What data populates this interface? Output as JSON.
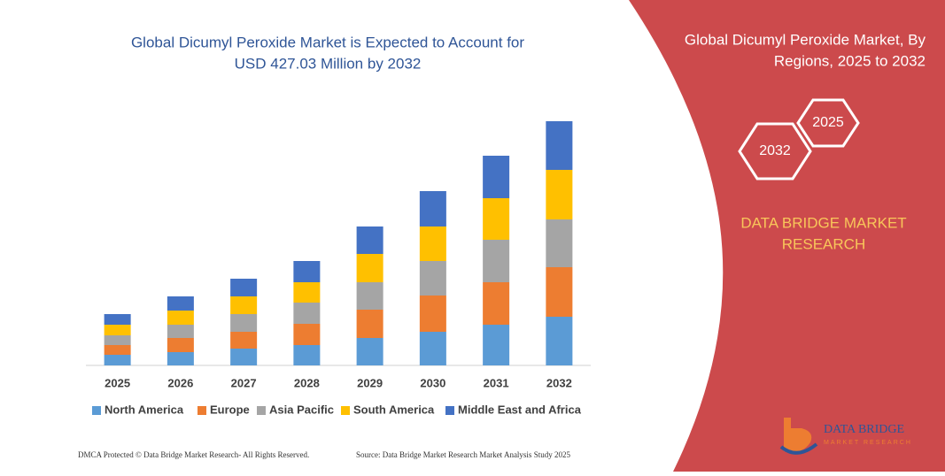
{
  "chart_data": {
    "type": "stacked-bar",
    "title": [
      "Global Dicumyl Peroxide Market is Expected to Account for",
      "USD 427.03 Million by 2032"
    ],
    "categories": [
      "2025",
      "2026",
      "2027",
      "2028",
      "2029",
      "2030",
      "2031",
      "2032"
    ],
    "series": [
      {
        "name": "North America",
        "color": "#5b9bd5",
        "values": [
          12,
          15,
          19,
          23,
          31,
          38,
          46,
          55
        ]
      },
      {
        "name": "Europe",
        "color": "#ed7d31",
        "values": [
          11,
          16,
          19,
          24,
          32,
          41,
          48,
          56
        ]
      },
      {
        "name": "Asia Pacific",
        "color": "#a5a5a5",
        "values": [
          11,
          15,
          20,
          24,
          31,
          39,
          48,
          54
        ]
      },
      {
        "name": "South America",
        "color": "#ffc000",
        "values": [
          12,
          16,
          20,
          23,
          32,
          39,
          47,
          56
        ]
      },
      {
        "name": "Middle East and Africa",
        "color": "#4472c4",
        "values": [
          12,
          16,
          20,
          24,
          31,
          40,
          48,
          55
        ]
      }
    ]
  },
  "side_panel": {
    "title": [
      "Global Dicumyl Peroxide Market, By",
      "Regions, 2025 to 2032"
    ],
    "hexagons": [
      "2032",
      "2025"
    ],
    "brand": [
      "DATA BRIDGE MARKET",
      "RESEARCH"
    ]
  },
  "logo": {
    "name": "DATA BRIDGE",
    "tagline": "MARKET RESEARCH"
  },
  "footer": {
    "left": "DMCA Protected © Data Bridge Market Research- All Rights Reserved.",
    "right": "Source: Data Bridge Market Research Market Analysis Study 2025"
  }
}
